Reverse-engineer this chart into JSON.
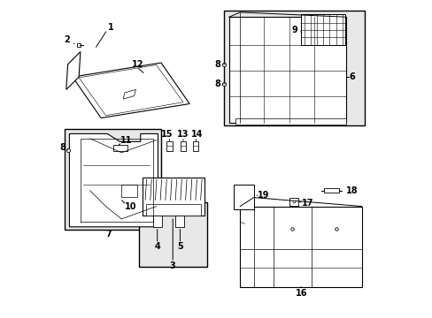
{
  "bg_color": "#ffffff",
  "line_color": "#000000",
  "fig_width": 4.89,
  "fig_height": 3.6,
  "dpi": 100,
  "gray_fill": "#e8e8e8"
}
